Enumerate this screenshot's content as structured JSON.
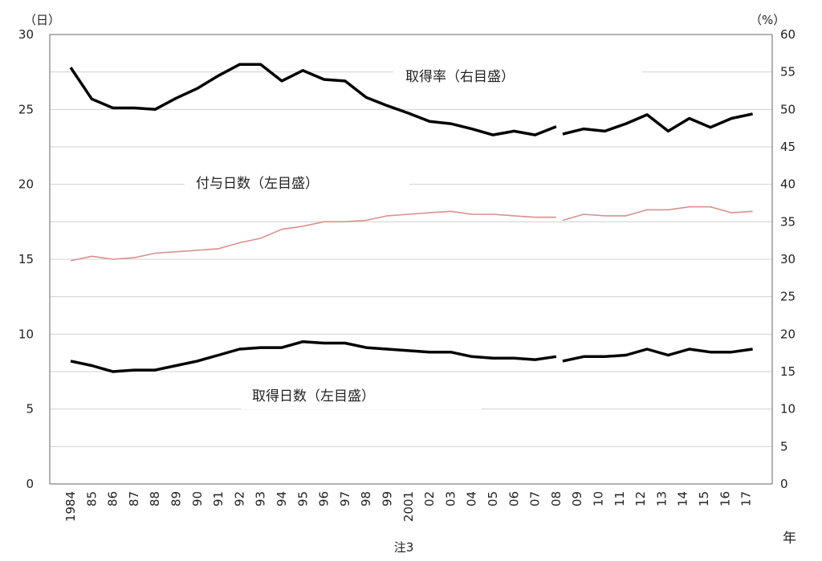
{
  "chart_data": {
    "type": "line",
    "left_axis": {
      "unit": "（日）",
      "ylim": [
        0,
        30
      ],
      "ticks": [
        "0",
        "5",
        "10",
        "15",
        "20",
        "25",
        "30"
      ]
    },
    "right_axis": {
      "unit": "（%）",
      "ylim": [
        0,
        60
      ],
      "ticks": [
        "0",
        "5",
        "10",
        "15",
        "20",
        "25",
        "30",
        "35",
        "40",
        "45",
        "50",
        "55",
        "60"
      ]
    },
    "x_axis": {
      "label": "年",
      "categories": [
        "1984",
        "85",
        "86",
        "87",
        "88",
        "89",
        "90",
        "91",
        "92",
        "93",
        "94",
        "95",
        "96",
        "97",
        "98",
        "99",
        "2001",
        "02",
        "03",
        "04",
        "05",
        "06",
        "07",
        "08",
        "09",
        "10",
        "11",
        "12",
        "13",
        "14",
        "15",
        "16",
        "17"
      ],
      "note": "注3",
      "note_category": "2001"
    },
    "break_after_index": 23,
    "grid": "horizontal",
    "series": [
      {
        "name": "取得率（右目盛）",
        "axis": "right",
        "color": "#000000",
        "values_before_break": [
          55.6,
          51.4,
          50.2,
          50.2,
          50.0,
          51.5,
          52.8,
          54.5,
          56.0,
          56.0,
          53.8,
          55.2,
          54.0,
          53.8,
          51.6,
          50.5,
          49.5,
          48.4,
          48.1,
          47.4,
          46.6,
          47.1,
          46.6,
          47.7
        ],
        "values_after_break": [
          46.7,
          47.4,
          47.1,
          48.1,
          49.3,
          47.1,
          48.8,
          47.6,
          48.8,
          49.4
        ]
      },
      {
        "name": "付与日数（左目盛）",
        "axis": "left",
        "color": "#d9908e",
        "values_before_break": [
          14.9,
          15.2,
          15.0,
          15.1,
          15.4,
          15.5,
          15.6,
          15.7,
          16.1,
          16.4,
          17.0,
          17.2,
          17.5,
          17.5,
          17.6,
          17.9,
          18.0,
          18.1,
          18.2,
          18.0,
          18.0,
          17.9,
          17.8,
          17.8
        ],
        "values_after_break": [
          17.6,
          18.0,
          17.9,
          17.9,
          18.3,
          18.3,
          18.5,
          18.5,
          18.1,
          18.2
        ]
      },
      {
        "name": "取得日数（左目盛）",
        "axis": "left",
        "color": "#000000",
        "values_before_break": [
          8.2,
          7.9,
          7.5,
          7.6,
          7.6,
          7.9,
          8.2,
          8.6,
          9.0,
          9.1,
          9.1,
          9.5,
          9.4,
          9.4,
          9.1,
          9.0,
          8.9,
          8.8,
          8.8,
          8.5,
          8.4,
          8.4,
          8.3,
          8.5
        ],
        "values_after_break": [
          8.2,
          8.5,
          8.5,
          8.6,
          9.0,
          8.6,
          9.0,
          8.8,
          8.8,
          9.0
        ]
      }
    ]
  }
}
